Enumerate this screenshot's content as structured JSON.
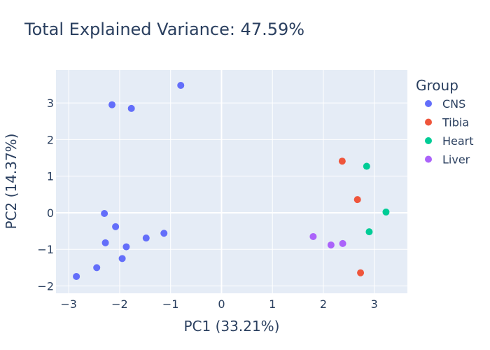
{
  "chart_data": {
    "type": "scatter",
    "title": "Total Explained Variance: 47.59%",
    "xlabel": "PC1 (33.21%)",
    "ylabel": "PC2 (14.37%)",
    "xlim": [
      -3.25,
      3.65
    ],
    "ylim": [
      -2.2,
      3.9
    ],
    "xticks": [
      -3,
      -2,
      -1,
      0,
      1,
      2,
      3
    ],
    "yticks": [
      -2,
      -1,
      0,
      1,
      2,
      3
    ],
    "xtick_labels": [
      "−3",
      "−2",
      "−1",
      "0",
      "1",
      "2",
      "3"
    ],
    "ytick_labels": [
      "−2",
      "−1",
      "0",
      "1",
      "2",
      "3"
    ],
    "grid": true,
    "legend": {
      "title": "Group",
      "placement": "top-right-outside"
    },
    "series": [
      {
        "name": "CNS",
        "color": "#636efa",
        "points": [
          {
            "x": -0.8,
            "y": 3.48
          },
          {
            "x": -2.15,
            "y": 2.95
          },
          {
            "x": -1.77,
            "y": 2.85
          },
          {
            "x": -2.3,
            "y": -0.02
          },
          {
            "x": -2.08,
            "y": -0.38
          },
          {
            "x": -1.13,
            "y": -0.56
          },
          {
            "x": -1.48,
            "y": -0.69
          },
          {
            "x": -2.28,
            "y": -0.82
          },
          {
            "x": -1.87,
            "y": -0.93
          },
          {
            "x": -1.95,
            "y": -1.25
          },
          {
            "x": -2.45,
            "y": -1.5
          },
          {
            "x": -2.85,
            "y": -1.74
          }
        ]
      },
      {
        "name": "Tibia",
        "color": "#ef553b",
        "points": [
          {
            "x": 2.37,
            "y": 1.41
          },
          {
            "x": 2.67,
            "y": 0.36
          },
          {
            "x": 2.73,
            "y": -1.64
          }
        ]
      },
      {
        "name": "Heart",
        "color": "#00cc96",
        "points": [
          {
            "x": 2.85,
            "y": 1.27
          },
          {
            "x": 3.23,
            "y": 0.02
          },
          {
            "x": 2.9,
            "y": -0.52
          }
        ]
      },
      {
        "name": "Liver",
        "color": "#ab63fa",
        "points": [
          {
            "x": 1.8,
            "y": -0.65
          },
          {
            "x": 2.15,
            "y": -0.88
          },
          {
            "x": 2.38,
            "y": -0.84
          }
        ]
      }
    ]
  }
}
